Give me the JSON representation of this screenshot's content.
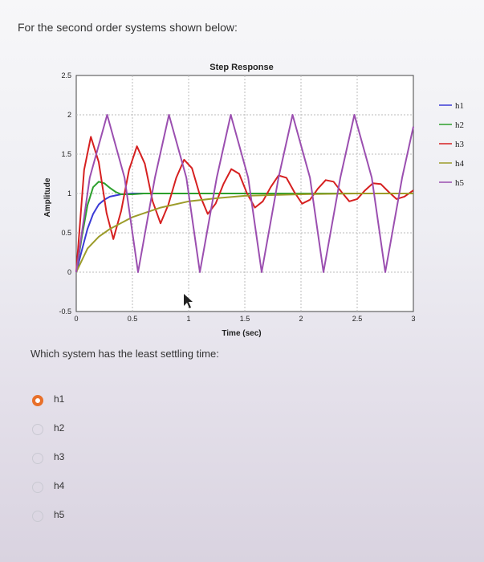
{
  "question": "For the second order systems shown below:",
  "prompt": "Which system has the least settling time:",
  "accent_color": "#e8702a",
  "options": [
    {
      "label": "h1",
      "selected": true
    },
    {
      "label": "h2",
      "selected": false
    },
    {
      "label": "h3",
      "selected": false
    },
    {
      "label": "h4",
      "selected": false
    },
    {
      "label": "h5",
      "selected": false
    }
  ],
  "chart_data": {
    "type": "line",
    "title": "Step Response",
    "xlabel": "Time (sec)",
    "ylabel": "Amplitude",
    "xlim": [
      0,
      3
    ],
    "ylim": [
      -0.5,
      2.5
    ],
    "xticks": [
      "0",
      "0.5",
      "1",
      "1.5",
      "2",
      "2.5",
      "3"
    ],
    "yticks": [
      "-0.5",
      "0",
      "0.5",
      "1",
      "1.5",
      "2",
      "2.5"
    ],
    "grid": true,
    "legend_position": "right",
    "series": [
      {
        "name": "h1",
        "color": "#3b3bd6",
        "values": [
          [
            0,
            0
          ],
          [
            0.05,
            0.28
          ],
          [
            0.1,
            0.55
          ],
          [
            0.15,
            0.74
          ],
          [
            0.2,
            0.86
          ],
          [
            0.25,
            0.92
          ],
          [
            0.3,
            0.96
          ],
          [
            0.4,
            0.99
          ],
          [
            0.5,
            1.0
          ],
          [
            1.0,
            1.0
          ],
          [
            3.0,
            1.0
          ]
        ]
      },
      {
        "name": "h2",
        "color": "#2ca02c",
        "values": [
          [
            0,
            0
          ],
          [
            0.05,
            0.45
          ],
          [
            0.1,
            0.85
          ],
          [
            0.15,
            1.08
          ],
          [
            0.2,
            1.15
          ],
          [
            0.25,
            1.13
          ],
          [
            0.3,
            1.07
          ],
          [
            0.35,
            1.02
          ],
          [
            0.4,
            0.99
          ],
          [
            0.5,
            0.99
          ],
          [
            0.6,
            1.0
          ],
          [
            3.0,
            1.0
          ]
        ]
      },
      {
        "name": "h3",
        "color": "#d62020",
        "values": [
          [
            0,
            0
          ],
          [
            0.07,
            1.3
          ],
          [
            0.13,
            1.72
          ],
          [
            0.2,
            1.4
          ],
          [
            0.27,
            0.75
          ],
          [
            0.33,
            0.42
          ],
          [
            0.4,
            0.78
          ],
          [
            0.47,
            1.3
          ],
          [
            0.54,
            1.6
          ],
          [
            0.61,
            1.38
          ],
          [
            0.68,
            0.9
          ],
          [
            0.75,
            0.62
          ],
          [
            0.82,
            0.86
          ],
          [
            0.89,
            1.2
          ],
          [
            0.96,
            1.43
          ],
          [
            1.03,
            1.32
          ],
          [
            1.1,
            0.98
          ],
          [
            1.17,
            0.74
          ],
          [
            1.24,
            0.87
          ],
          [
            1.31,
            1.12
          ],
          [
            1.38,
            1.31
          ],
          [
            1.45,
            1.25
          ],
          [
            1.52,
            1.0
          ],
          [
            1.59,
            0.82
          ],
          [
            1.66,
            0.9
          ],
          [
            1.73,
            1.08
          ],
          [
            1.8,
            1.23
          ],
          [
            1.87,
            1.2
          ],
          [
            1.94,
            1.02
          ],
          [
            2.01,
            0.87
          ],
          [
            2.08,
            0.92
          ],
          [
            2.15,
            1.06
          ],
          [
            2.22,
            1.17
          ],
          [
            2.29,
            1.15
          ],
          [
            2.36,
            1.02
          ],
          [
            2.43,
            0.9
          ],
          [
            2.5,
            0.93
          ],
          [
            2.57,
            1.04
          ],
          [
            2.64,
            1.13
          ],
          [
            2.71,
            1.12
          ],
          [
            2.78,
            1.02
          ],
          [
            2.85,
            0.93
          ],
          [
            2.92,
            0.96
          ],
          [
            3.0,
            1.04
          ]
        ]
      },
      {
        "name": "h4",
        "color": "#9c9c2a",
        "values": [
          [
            0,
            0
          ],
          [
            0.1,
            0.3
          ],
          [
            0.2,
            0.45
          ],
          [
            0.3,
            0.55
          ],
          [
            0.5,
            0.7
          ],
          [
            0.75,
            0.82
          ],
          [
            1.0,
            0.9
          ],
          [
            1.25,
            0.94
          ],
          [
            1.5,
            0.97
          ],
          [
            2.0,
            0.99
          ],
          [
            2.5,
            1.0
          ],
          [
            3.0,
            1.0
          ]
        ]
      },
      {
        "name": "h5",
        "color": "#9b4fb0",
        "values": [
          [
            0,
            0
          ],
          [
            0.12,
            1.2
          ],
          [
            0.275,
            2.0
          ],
          [
            0.43,
            1.2
          ],
          [
            0.55,
            0.0
          ],
          [
            0.7,
            1.2
          ],
          [
            0.825,
            2.0
          ],
          [
            0.98,
            1.2
          ],
          [
            1.1,
            0.0
          ],
          [
            1.25,
            1.2
          ],
          [
            1.375,
            2.0
          ],
          [
            1.53,
            1.2
          ],
          [
            1.65,
            0.0
          ],
          [
            1.8,
            1.2
          ],
          [
            1.925,
            2.0
          ],
          [
            2.08,
            1.2
          ],
          [
            2.2,
            0.0
          ],
          [
            2.35,
            1.2
          ],
          [
            2.475,
            2.0
          ],
          [
            2.63,
            1.2
          ],
          [
            2.75,
            0.0
          ],
          [
            2.9,
            1.2
          ],
          [
            3.0,
            1.85
          ]
        ]
      }
    ]
  }
}
